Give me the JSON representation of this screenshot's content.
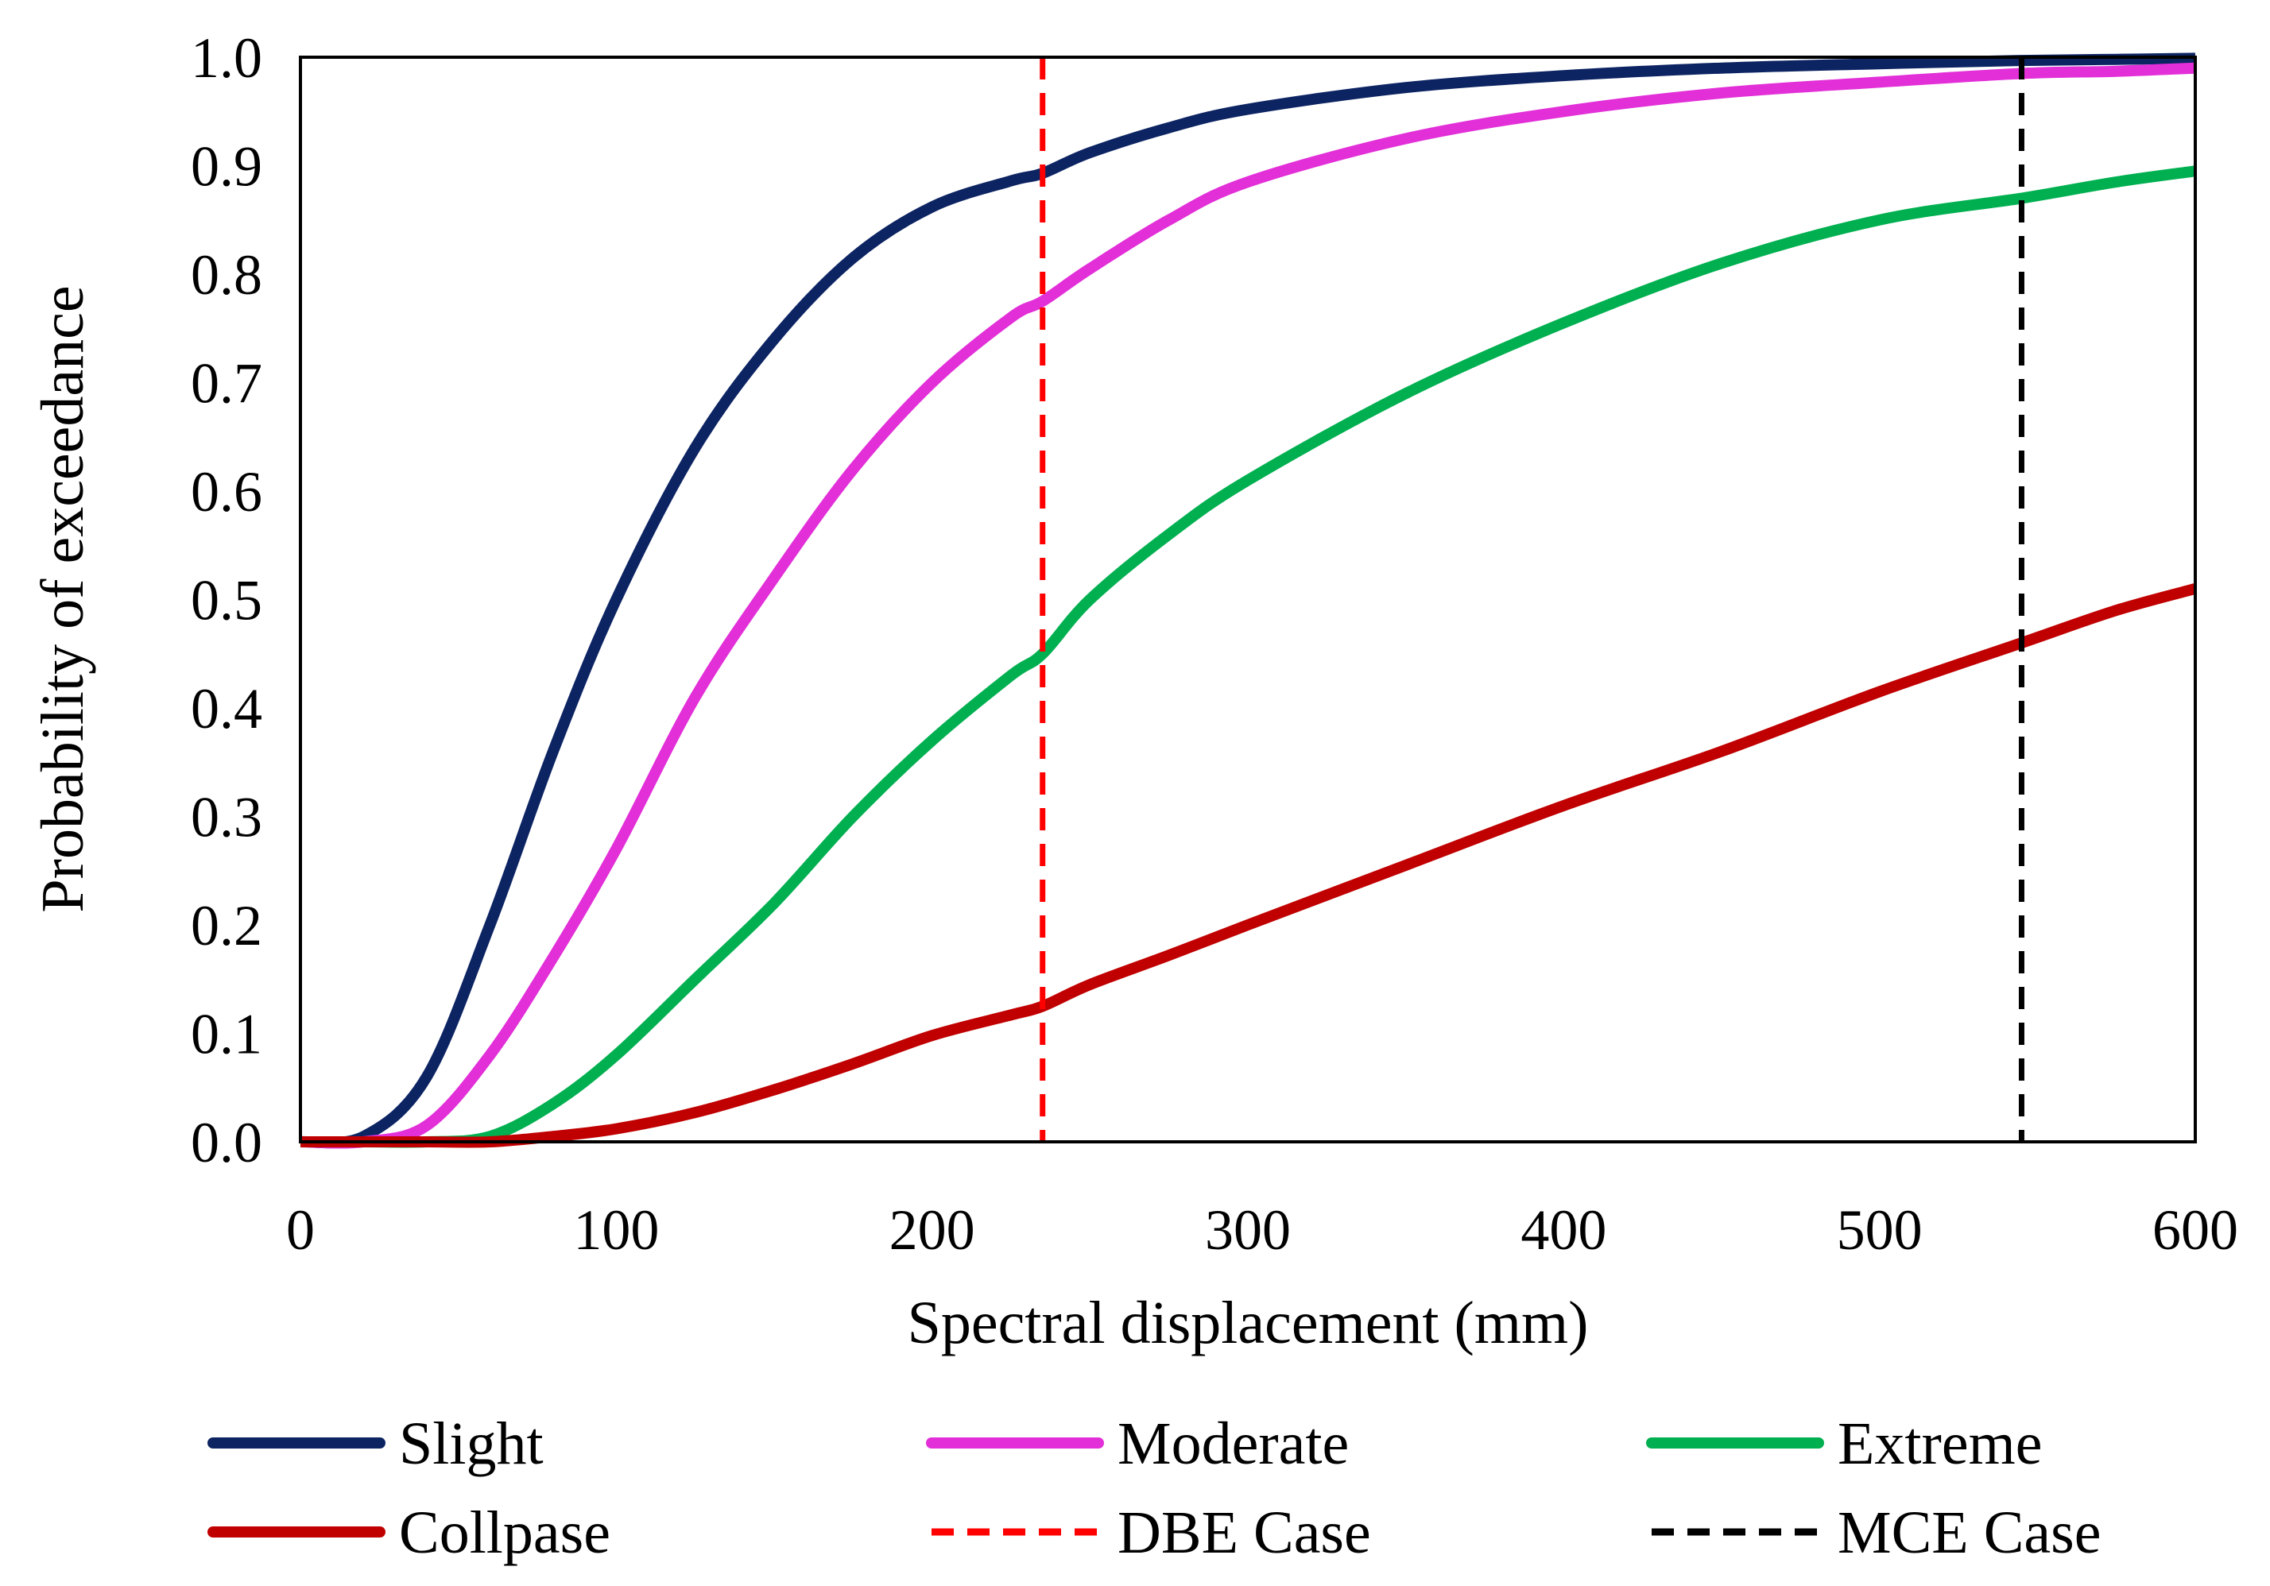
{
  "chart_data": {
    "type": "line",
    "title": "",
    "xlabel": "Spectral displacement (mm)",
    "ylabel": "Probability of exceedance",
    "xlim": [
      0,
      600
    ],
    "ylim": [
      0,
      1.0
    ],
    "xticks": [
      "0",
      "100",
      "200",
      "300",
      "400",
      "500",
      "600"
    ],
    "yticks": [
      "0.0",
      "0.1",
      "0.2",
      "0.3",
      "0.4",
      "0.5",
      "0.6",
      "0.7",
      "0.8",
      "0.9",
      "1.0"
    ],
    "x": [
      0,
      20,
      40,
      60,
      80,
      100,
      125,
      150,
      175,
      200,
      225,
      235,
      250,
      275,
      300,
      350,
      400,
      450,
      500,
      545,
      575,
      600
    ],
    "series": [
      {
        "name": "Slight",
        "color": "#0d2463",
        "dashed": false,
        "values": [
          0.0,
          0.005,
          0.06,
          0.2,
          0.36,
          0.5,
          0.64,
          0.74,
          0.815,
          0.862,
          0.886,
          0.893,
          0.912,
          0.935,
          0.952,
          0.972,
          0.983,
          0.99,
          0.994,
          0.997,
          0.998,
          0.999
        ]
      },
      {
        "name": "Moderate",
        "color": "#e22fd8",
        "dashed": false,
        "values": [
          0.0,
          0.0,
          0.015,
          0.08,
          0.17,
          0.27,
          0.41,
          0.52,
          0.62,
          0.7,
          0.76,
          0.775,
          0.805,
          0.85,
          0.885,
          0.925,
          0.95,
          0.967,
          0.977,
          0.985,
          0.987,
          0.99
        ]
      },
      {
        "name": "Extreme",
        "color": "#00b050",
        "dashed": false,
        "values": [
          0.0,
          0.0,
          0.0,
          0.005,
          0.035,
          0.08,
          0.15,
          0.22,
          0.3,
          0.37,
          0.43,
          0.45,
          0.5,
          0.56,
          0.61,
          0.69,
          0.755,
          0.81,
          0.85,
          0.87,
          0.885,
          0.895
        ]
      },
      {
        "name": "Collpase",
        "color": "#c00000",
        "dashed": false,
        "values": [
          0.0,
          0.0,
          0.0,
          0.0,
          0.005,
          0.012,
          0.027,
          0.048,
          0.072,
          0.098,
          0.117,
          0.125,
          0.145,
          0.172,
          0.2,
          0.255,
          0.31,
          0.36,
          0.415,
          0.46,
          0.49,
          0.51
        ]
      }
    ],
    "vlines": [
      {
        "name": "DBE Case",
        "x": 235,
        "color": "#ff0000"
      },
      {
        "name": "MCE Case",
        "x": 545,
        "color": "#000000"
      }
    ],
    "legend": {
      "position": "bottom",
      "entries": [
        {
          "name": "Slight",
          "color": "#0d2463",
          "dashed": false
        },
        {
          "name": "Moderate",
          "color": "#e22fd8",
          "dashed": false
        },
        {
          "name": "Extreme",
          "color": "#00b050",
          "dashed": false
        },
        {
          "name": "Collpase",
          "color": "#c00000",
          "dashed": false
        },
        {
          "name": "DBE Case",
          "color": "#ff0000",
          "dashed": true
        },
        {
          "name": "MCE Case",
          "color": "#000000",
          "dashed": true
        }
      ]
    },
    "grid": false
  }
}
